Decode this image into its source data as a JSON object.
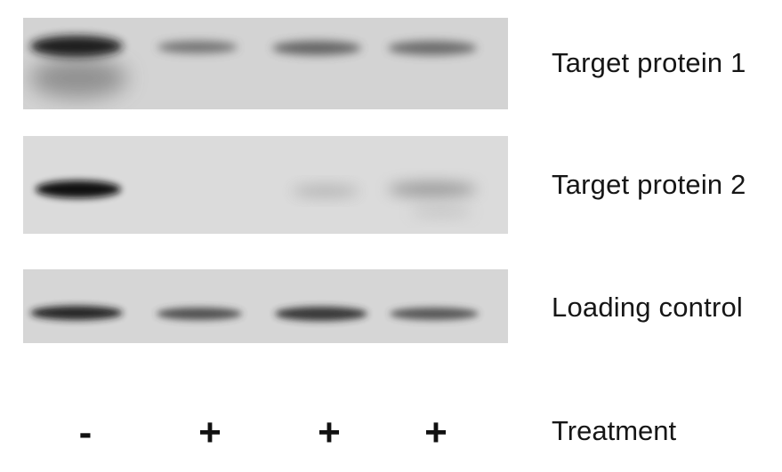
{
  "blots": [
    {
      "label": "Target protein 1",
      "background": "#d2d2d2",
      "band_intensities": [
        1.0,
        0.45,
        0.55,
        0.5
      ]
    },
    {
      "label": "Target protein 2",
      "background": "#dadada",
      "band_intensities": [
        1.0,
        0.0,
        0.2,
        0.35
      ]
    },
    {
      "label": "Loading control",
      "background": "#d6d6d6",
      "band_intensities": [
        1.0,
        0.7,
        0.8,
        0.6
      ]
    }
  ],
  "treatment": {
    "label": "Treatment",
    "lanes": [
      "-",
      "+",
      "+",
      "+"
    ]
  }
}
